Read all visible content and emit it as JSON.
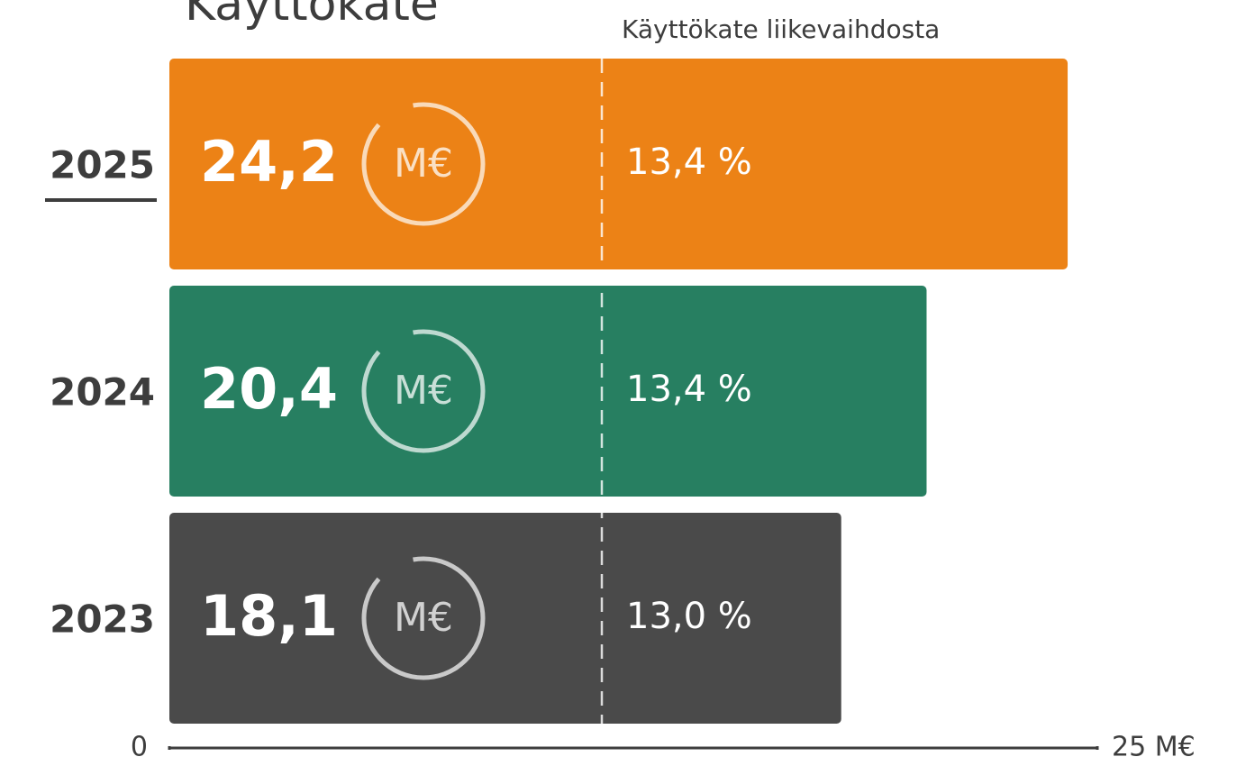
{
  "chart_data": {
    "type": "bar",
    "orientation": "horizontal",
    "title": "Käyttökate",
    "subtitle": "Käyttökate liikevaihdosta",
    "unit": "M€",
    "categories": [
      "2025",
      "2024",
      "2023"
    ],
    "values": [
      24.2,
      20.4,
      18.1
    ],
    "value_labels": [
      "24,2",
      "20,4",
      "18,1"
    ],
    "colors": [
      "#ec8216",
      "#277f61",
      "#4a4a4a"
    ],
    "margin": {
      "name": "Käyttökate liikevaihdosta",
      "values": [
        13.4,
        13.4,
        13.0
      ],
      "value_labels": [
        "13,4 %",
        "13,4 %",
        "13,0 %"
      ]
    },
    "xlim": [
      0,
      25
    ],
    "xticks": [
      0,
      {
        "value": 25,
        "label": "25 M€"
      }
    ]
  }
}
